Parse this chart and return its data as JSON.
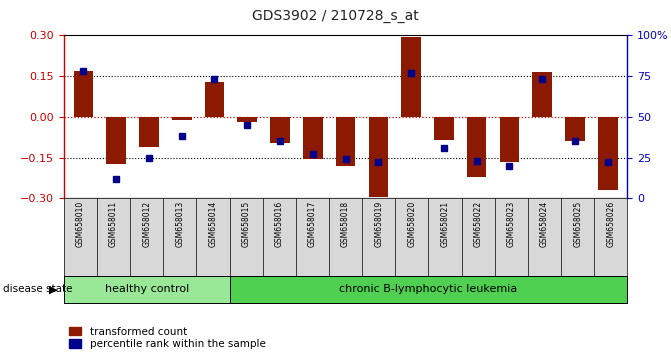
{
  "title": "GDS3902 / 210728_s_at",
  "samples": [
    "GSM658010",
    "GSM658011",
    "GSM658012",
    "GSM658013",
    "GSM658014",
    "GSM658015",
    "GSM658016",
    "GSM658017",
    "GSM658018",
    "GSM658019",
    "GSM658020",
    "GSM658021",
    "GSM658022",
    "GSM658023",
    "GSM658024",
    "GSM658025",
    "GSM658026"
  ],
  "red_bars": [
    0.17,
    -0.175,
    -0.11,
    -0.01,
    0.13,
    -0.02,
    -0.095,
    -0.155,
    -0.18,
    -0.295,
    0.295,
    -0.085,
    -0.22,
    -0.165,
    0.165,
    -0.09,
    -0.27
  ],
  "blue_dots_pct": [
    78,
    12,
    25,
    38,
    73,
    45,
    35,
    27,
    24,
    22,
    77,
    31,
    23,
    20,
    73,
    35,
    22
  ],
  "ylim": [
    -0.3,
    0.3
  ],
  "yticks_left": [
    -0.3,
    -0.15,
    0.0,
    0.15,
    0.3
  ],
  "yticks_right": [
    0,
    25,
    50,
    75,
    100
  ],
  "healthy_count": 5,
  "healthy_label": "healthy control",
  "disease_label": "chronic B-lymphocytic leukemia",
  "disease_state_label": "disease state",
  "legend_red": "transformed count",
  "legend_blue": "percentile rank within the sample",
  "bar_color": "#8B1A00",
  "dot_color": "#00008B",
  "healthy_bg": "#98E898",
  "disease_bg": "#50D050",
  "plot_bg": "#FFFFFF",
  "grid_color": "#000000",
  "zero_line_color": "#CC0000",
  "left_axis_color": "#CC0000",
  "right_axis_color": "#0000CC",
  "bar_width": 0.6,
  "label_bg": "#D8D8D8"
}
